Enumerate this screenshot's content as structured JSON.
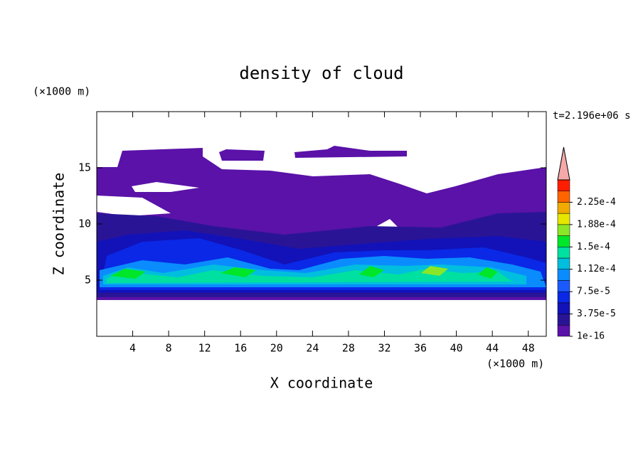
{
  "chart_data": {
    "type": "contour",
    "title": "density of cloud",
    "xlabel": "X coordinate",
    "ylabel": "Z coordinate",
    "x_unit": "(×1000 m)",
    "y_unit": "(×1000 m)",
    "time_label": "t=2.196e+06 s",
    "xlim": [
      0,
      50
    ],
    "xticks": [
      4,
      8,
      12,
      16,
      20,
      24,
      28,
      32,
      36,
      40,
      44,
      48
    ],
    "ylim": [
      0,
      20
    ],
    "yticks": [
      5,
      10,
      15
    ],
    "colorbar": {
      "clim": [
        1e-16,
        0.0002625
      ],
      "ticks": [
        1e-16,
        {
          "value": 3.75e-05,
          "label": "3.75e-5"
        },
        {
          "value": 7.5e-05,
          "label": "7.5e-5"
        },
        {
          "value": 0.0001125,
          "label": "1.12e-4"
        },
        {
          "value": 0.00015,
          "label": "1.5e-4"
        },
        {
          "value": 0.0001875,
          "label": "1.88e-4"
        },
        {
          "value": 0.000225,
          "label": "2.25e-4"
        }
      ],
      "colors": [
        "#5a12a8",
        "#2a1496",
        "#1212b8",
        "#0a28e6",
        "#1a5aff",
        "#0a8cff",
        "#00bede",
        "#00e0a0",
        "#00e628",
        "#8ce628",
        "#e6e600",
        "#f0aa00",
        "#ff6400",
        "#ff1e00"
      ],
      "extend_color": "#f4a8a8"
    }
  }
}
